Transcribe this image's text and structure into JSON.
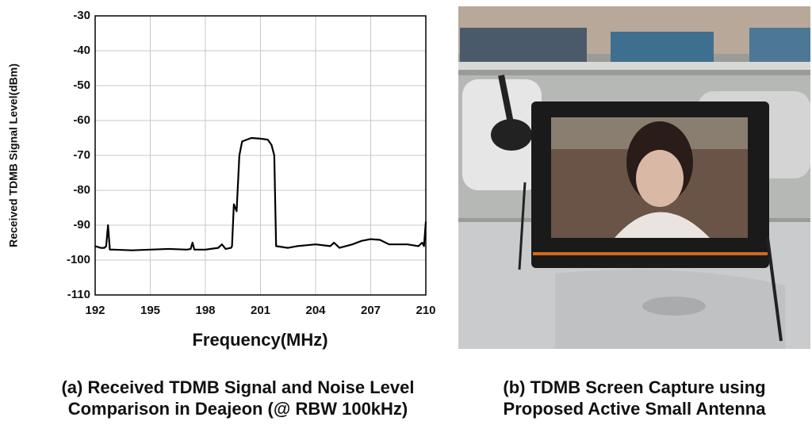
{
  "chart_data": {
    "type": "line",
    "x_label": "Frequency(MHz)",
    "y_label": "Received TDMB Signal Level(dBm)",
    "caption": [
      "(a) Received TDMB Signal and Noise Level",
      "Comparison in Deajeon (@ RBW 100kHz)"
    ],
    "xlim": [
      192,
      210
    ],
    "xticks": [
      192,
      195,
      198,
      201,
      204,
      207,
      210
    ],
    "ylim": [
      -110,
      -30
    ],
    "yticks": [
      -110,
      -100,
      -90,
      -80,
      -70,
      -60,
      -50,
      -40,
      -30
    ],
    "grid": true,
    "series": [
      {
        "color": "#000000",
        "x": [
          192,
          192.3,
          192.5,
          192.6,
          192.7,
          192.8,
          193,
          194,
          195,
          196,
          197,
          197.2,
          197.3,
          197.4,
          198,
          198.7,
          198.9,
          199.1,
          199.4,
          199.45,
          199.55,
          199.7,
          199.85,
          200.0,
          200.5,
          201.0,
          201.4,
          201.6,
          201.75,
          201.85,
          202.5,
          203,
          204,
          204.8,
          205,
          205.3,
          206,
          206.5,
          207,
          207.5,
          208,
          209,
          209.6,
          209.8,
          209.9,
          210
        ],
        "values": [
          -96,
          -96.5,
          -96.5,
          -96,
          -90,
          -97,
          -97,
          -97.2,
          -97,
          -96.8,
          -97,
          -96.8,
          -95,
          -97,
          -97,
          -96.5,
          -95.5,
          -96.8,
          -96.5,
          -96,
          -84,
          -86,
          -70,
          -66,
          -65,
          -65.2,
          -65.5,
          -67,
          -70,
          -96,
          -96.5,
          -96,
          -95.5,
          -96,
          -95,
          -96.5,
          -95.5,
          -94.5,
          -94,
          -94.2,
          -95.5,
          -95.5,
          -96,
          -95,
          -96,
          -89
        ]
      }
    ]
  },
  "photo": {
    "caption": [
      "(b) TDMB Screen Capture using",
      "Proposed Active Small Antenna"
    ]
  }
}
